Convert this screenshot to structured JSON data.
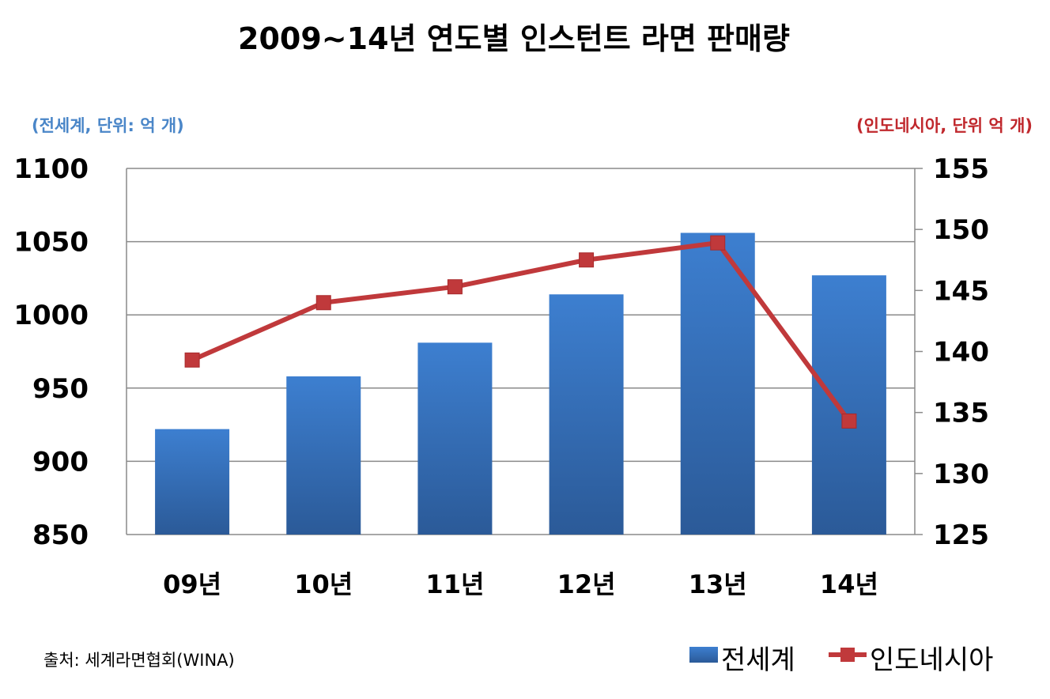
{
  "chart_data": {
    "type": "bar",
    "title": "2009~14년 연도별 인스턴트 라면 판매량",
    "left_axis_label": "(전세계, 단위: 억 개)",
    "right_axis_label": "(인도네시아, 단위 억 개)",
    "categories": [
      "09년",
      "10년",
      "11년",
      "12년",
      "13년",
      "14년"
    ],
    "series": [
      {
        "name": "전세계",
        "type": "bar",
        "axis": "left",
        "color": "#3a78c2",
        "values": [
          922,
          958,
          981,
          1014,
          1056,
          1027
        ]
      },
      {
        "name": "인도네시아",
        "type": "line",
        "axis": "right",
        "color": "#c0393b",
        "values": [
          139.3,
          144.0,
          145.3,
          147.5,
          148.9,
          134.3
        ]
      }
    ],
    "y_left": {
      "min": 850,
      "max": 1100,
      "ticks": [
        "850",
        "900",
        "950",
        "1000",
        "1050",
        "1100"
      ]
    },
    "y_right": {
      "min": 125,
      "max": 155,
      "ticks": [
        "125",
        "130",
        "135",
        "140",
        "145",
        "150",
        "155"
      ]
    },
    "grid": true,
    "legend_position": "bottom-right",
    "source": "출처: 세계라면협회(WINA)"
  }
}
